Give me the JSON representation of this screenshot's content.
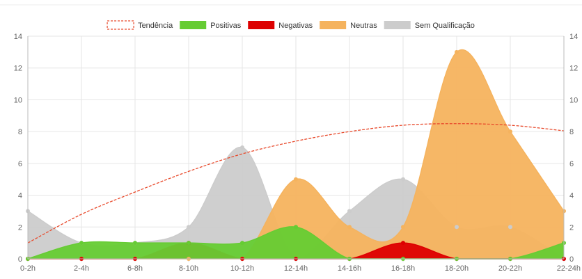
{
  "chart_data": {
    "type": "area",
    "categories": [
      "0-2h",
      "2-4h",
      "6-8h",
      "8-10h",
      "10-12h",
      "12-14h",
      "14-16h",
      "16-18h",
      "18-20h",
      "20-22h",
      "22-24h"
    ],
    "ylim": [
      0,
      14
    ],
    "yticks": [
      0,
      2,
      4,
      6,
      8,
      10,
      12,
      14
    ],
    "right_axis": true,
    "grid": true,
    "legend_position": "top",
    "series": [
      {
        "name": "Tendência",
        "kind": "trend-line",
        "color": "#e8492b",
        "values": [
          1,
          2.8,
          4.2,
          5.5,
          6.6,
          7.4,
          8.0,
          8.4,
          8.5,
          8.4,
          8.05
        ]
      },
      {
        "name": "Positivas",
        "kind": "area",
        "color": "#66cc33",
        "values": [
          0,
          1,
          1,
          1,
          1,
          2,
          0,
          0,
          0,
          0,
          1
        ]
      },
      {
        "name": "Negativas",
        "kind": "area",
        "color": "#dd0000",
        "values": [
          0,
          0,
          0,
          1,
          0,
          0,
          0,
          1,
          0,
          0,
          0
        ]
      },
      {
        "name": "Neutras",
        "kind": "area",
        "color": "#f5b35e",
        "values": [
          0,
          0,
          0,
          0,
          0,
          5,
          2,
          2,
          13,
          8,
          3
        ]
      },
      {
        "name": "Sem Qualificação",
        "kind": "area",
        "color": "#cccccc",
        "values": [
          3,
          1,
          1,
          2,
          7,
          0,
          3,
          5,
          2,
          2,
          0
        ]
      }
    ]
  }
}
